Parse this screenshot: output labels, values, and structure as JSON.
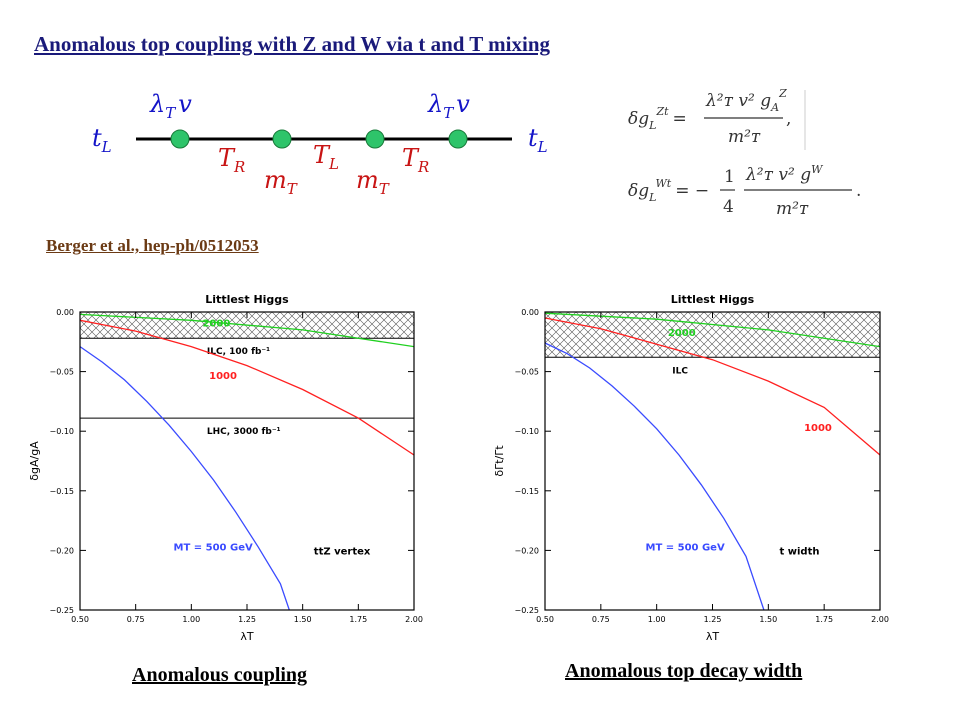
{
  "title": "Anomalous top coupling with Z and W via t and T mixing",
  "citation": "Berger et al., hep-ph/0512053",
  "diagram": {
    "lambda_left": "λ",
    "lambda_sub": "T",
    "v": "v",
    "t_left": "t",
    "t_sub": "L",
    "TR": "T",
    "TR_sub": "R",
    "TL": "T",
    "TL_sub": "L",
    "m": "m",
    "m_sub": "T"
  },
  "formulas": {
    "z_lhs": "δg",
    "z_lhs_sub": "L",
    "z_lhs_sup": "Zt",
    "z_num": "λ²ᴛ v² g",
    "z_num_sub": "A",
    "z_num_sup": "Z",
    "z_den": "m²ᴛ",
    "w_lhs": "δg",
    "w_lhs_sub": "L",
    "w_lhs_sup": "Wt",
    "w_coef_num": "1",
    "w_coef_den": "4",
    "w_num": "λ²ᴛ v² g",
    "w_num_sup": "W",
    "w_den": "m²ᴛ"
  },
  "captions": {
    "left": "Anomalous coupling",
    "right": "Anomalous top decay width"
  },
  "chart_data": [
    {
      "type": "line",
      "title": "Littlest Higgs",
      "xlabel": "λT",
      "ylabel": "δgA/gA",
      "xlim": [
        0.5,
        2.0
      ],
      "ylim": [
        -0.25,
        0.0
      ],
      "xticks": [
        "0.50",
        "0.75",
        "1.00",
        "1.25",
        "1.50",
        "1.75",
        "2.00"
      ],
      "yticks": [
        "0.00",
        "−0.05",
        "−0.10",
        "−0.15",
        "−0.20",
        "−0.25"
      ],
      "series": [
        {
          "name": "500",
          "color": "#3a4bff",
          "x": [
            0.5,
            0.6,
            0.7,
            0.8,
            0.9,
            1.0,
            1.1,
            1.2,
            1.3,
            1.4,
            1.44
          ],
          "y": [
            -0.029,
            -0.042,
            -0.057,
            -0.075,
            -0.095,
            -0.117,
            -0.141,
            -0.168,
            -0.197,
            -0.228,
            -0.25
          ]
        },
        {
          "name": "1000",
          "color": "#ff2020",
          "x": [
            0.5,
            0.75,
            1.0,
            1.25,
            1.5,
            1.75,
            2.0
          ],
          "y": [
            -0.007,
            -0.016,
            -0.029,
            -0.045,
            -0.065,
            -0.089,
            -0.12
          ]
        },
        {
          "name": "2000",
          "color": "#20d020",
          "x": [
            0.5,
            1.0,
            1.5,
            2.0
          ],
          "y": [
            -0.002,
            -0.007,
            -0.015,
            -0.029
          ]
        }
      ],
      "hlines": [
        {
          "y": -0.022,
          "label": "ILC, 100 fb⁻¹",
          "hatched": true
        },
        {
          "y": -0.089,
          "label": "LHC, 3000 fb⁻¹",
          "hatched": false
        }
      ],
      "curve_labels": [
        {
          "text": "2000",
          "x": 1.05,
          "y": -0.012,
          "color": "#20d020"
        },
        {
          "text": "1000",
          "x": 1.08,
          "y": -0.056,
          "color": "#ff2020"
        },
        {
          "text": "MT = 500 GeV",
          "x": 0.92,
          "y": -0.2,
          "color": "#3a4bff"
        }
      ],
      "annotation": "ttZ vertex"
    },
    {
      "type": "line",
      "title": "Littlest Higgs",
      "xlabel": "λT",
      "ylabel": "δΓt/Γt",
      "xlim": [
        0.5,
        2.0
      ],
      "ylim": [
        -0.25,
        0.0
      ],
      "xticks": [
        "0.50",
        "0.75",
        "1.00",
        "1.25",
        "1.50",
        "1.75",
        "2.00"
      ],
      "yticks": [
        "0.00",
        "−0.05",
        "−0.10",
        "−0.15",
        "−0.20",
        "−0.25"
      ],
      "series": [
        {
          "name": "500",
          "color": "#3a4bff",
          "x": [
            0.5,
            0.6,
            0.7,
            0.8,
            0.9,
            1.0,
            1.1,
            1.2,
            1.3,
            1.4,
            1.48
          ],
          "y": [
            -0.026,
            -0.035,
            -0.047,
            -0.062,
            -0.079,
            -0.098,
            -0.12,
            -0.145,
            -0.173,
            -0.205,
            -0.25
          ]
        },
        {
          "name": "1000",
          "color": "#ff2020",
          "x": [
            0.5,
            0.75,
            1.0,
            1.25,
            1.5,
            1.75,
            2.0
          ],
          "y": [
            -0.005,
            -0.014,
            -0.027,
            -0.04,
            -0.058,
            -0.08,
            -0.12
          ]
        },
        {
          "name": "2000",
          "color": "#20d020",
          "x": [
            0.5,
            1.0,
            1.5,
            2.0
          ],
          "y": [
            -0.001,
            -0.006,
            -0.015,
            -0.029
          ]
        }
      ],
      "hlines": [
        {
          "y": -0.038,
          "label": "ILC",
          "hatched": true
        }
      ],
      "curve_labels": [
        {
          "text": "2000",
          "x": 1.05,
          "y": -0.02,
          "color": "#20d020"
        },
        {
          "text": "1000",
          "x": 1.66,
          "y": -0.1,
          "color": "#ff2020"
        },
        {
          "text": "MT = 500 GeV",
          "x": 0.95,
          "y": -0.2,
          "color": "#3a4bff"
        }
      ],
      "annotation": "t width"
    }
  ]
}
